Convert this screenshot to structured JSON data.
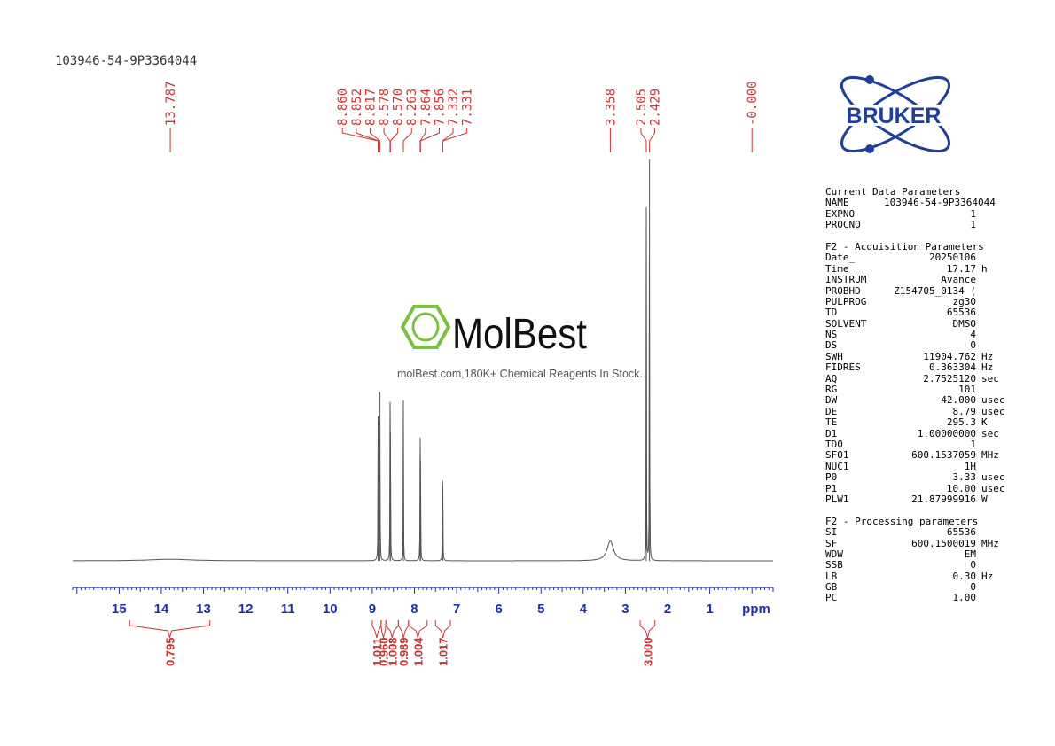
{
  "sample_id": "103946-54-9P3364044",
  "brand": {
    "name": "BRUKER",
    "color": "#1f3f99"
  },
  "watermark": {
    "name": "MolBest",
    "tagline": "molBest.com,180K+ Chemical Reagents In Stock.",
    "logo_color": "#7ac142"
  },
  "colors": {
    "peak_label": "#cc3333",
    "axis": "#1f2fb3",
    "trace": "#555555",
    "integral": "#cc3333"
  },
  "chart_data": {
    "type": "line",
    "nucleus": "1H",
    "xlabel": "ppm",
    "x_reversed": true,
    "xlim": [
      16.1,
      -0.5
    ],
    "ticks": [
      "15",
      "14",
      "13",
      "12",
      "11",
      "10",
      "9",
      "8",
      "7",
      "6",
      "5",
      "4",
      "3",
      "2",
      "1"
    ],
    "peak_labels": [
      "13.787",
      "8.860",
      "8.852",
      "8.817",
      "8.578",
      "8.570",
      "8.263",
      "7.864",
      "7.856",
      "7.332",
      "7.331",
      "3.358",
      "2.505",
      "2.429",
      "-0.000"
    ],
    "series": [
      {
        "peaks": [
          {
            "ppm": 8.86,
            "height": 0.33
          },
          {
            "ppm": 8.852,
            "height": 0.32
          },
          {
            "ppm": 8.817,
            "height": 0.42
          },
          {
            "ppm": 8.578,
            "height": 0.33
          },
          {
            "ppm": 8.57,
            "height": 0.32
          },
          {
            "ppm": 8.263,
            "height": 0.4
          },
          {
            "ppm": 7.864,
            "height": 0.26
          },
          {
            "ppm": 7.856,
            "height": 0.25
          },
          {
            "ppm": 7.332,
            "height": 0.2
          },
          {
            "ppm": 7.331,
            "height": 0.19
          },
          {
            "ppm": 3.358,
            "height": 0.05,
            "broad": true
          },
          {
            "ppm": 2.505,
            "height": 0.88
          },
          {
            "ppm": 2.429,
            "height": 1.0
          },
          {
            "ppm": 13.787,
            "height": 0.004,
            "broad": true
          }
        ]
      }
    ],
    "integrals": [
      {
        "from": 14.75,
        "to": 12.85,
        "value": "0.795"
      },
      {
        "from": 9.0,
        "to": 8.79,
        "value": "1.011"
      },
      {
        "from": 8.79,
        "to": 8.68,
        "value": "0.960"
      },
      {
        "from": 8.68,
        "to": 8.38,
        "value": "1.008"
      },
      {
        "from": 8.38,
        "to": 8.14,
        "value": "0.989"
      },
      {
        "from": 8.14,
        "to": 7.7,
        "value": "1.004"
      },
      {
        "from": 7.5,
        "to": 7.15,
        "value": "1.017"
      },
      {
        "from": 2.65,
        "to": 2.3,
        "value": "3.000"
      }
    ]
  },
  "parameters": {
    "current": {
      "heading": "Current Data Parameters",
      "rows": [
        {
          "name": "NAME",
          "value": "103946-54-9P3364044",
          "unit": ""
        },
        {
          "name": "EXPNO",
          "value": "1",
          "unit": ""
        },
        {
          "name": "PROCNO",
          "value": "1",
          "unit": ""
        }
      ]
    },
    "acquisition": {
      "heading": "F2 - Acquisition Parameters",
      "rows": [
        {
          "name": "Date_",
          "value": "20250106",
          "unit": ""
        },
        {
          "name": "Time",
          "value": "17.17",
          "unit": "h"
        },
        {
          "name": "INSTRUM",
          "value": "Avance",
          "unit": ""
        },
        {
          "name": "PROBHD",
          "value": "Z154705_0134 (",
          "unit": ""
        },
        {
          "name": "PULPROG",
          "value": "zg30",
          "unit": ""
        },
        {
          "name": "TD",
          "value": "65536",
          "unit": ""
        },
        {
          "name": "SOLVENT",
          "value": "DMSO",
          "unit": ""
        },
        {
          "name": "NS",
          "value": "4",
          "unit": ""
        },
        {
          "name": "DS",
          "value": "0",
          "unit": ""
        },
        {
          "name": "SWH",
          "value": "11904.762",
          "unit": "Hz"
        },
        {
          "name": "FIDRES",
          "value": "0.363304",
          "unit": "Hz"
        },
        {
          "name": "AQ",
          "value": "2.7525120",
          "unit": "sec"
        },
        {
          "name": "RG",
          "value": "101",
          "unit": ""
        },
        {
          "name": "DW",
          "value": "42.000",
          "unit": "usec"
        },
        {
          "name": "DE",
          "value": "8.79",
          "unit": "usec"
        },
        {
          "name": "TE",
          "value": "295.3",
          "unit": "K"
        },
        {
          "name": "D1",
          "value": "1.00000000",
          "unit": "sec"
        },
        {
          "name": "TD0",
          "value": "1",
          "unit": ""
        },
        {
          "name": "SFO1",
          "value": "600.1537059",
          "unit": "MHz"
        },
        {
          "name": "NUC1",
          "value": "1H",
          "unit": ""
        },
        {
          "name": "P0",
          "value": "3.33",
          "unit": "usec"
        },
        {
          "name": "P1",
          "value": "10.00",
          "unit": "usec"
        },
        {
          "name": "PLW1",
          "value": "21.87999916",
          "unit": "W"
        }
      ]
    },
    "processing": {
      "heading": "F2 - Processing parameters",
      "rows": [
        {
          "name": "SI",
          "value": "65536",
          "unit": ""
        },
        {
          "name": "SF",
          "value": "600.1500019",
          "unit": "MHz"
        },
        {
          "name": "WDW",
          "value": "EM",
          "unit": ""
        },
        {
          "name": "SSB",
          "value": "0",
          "unit": ""
        },
        {
          "name": "LB",
          "value": "0.30",
          "unit": "Hz"
        },
        {
          "name": "GB",
          "value": "0",
          "unit": ""
        },
        {
          "name": "PC",
          "value": "1.00",
          "unit": ""
        }
      ]
    }
  }
}
